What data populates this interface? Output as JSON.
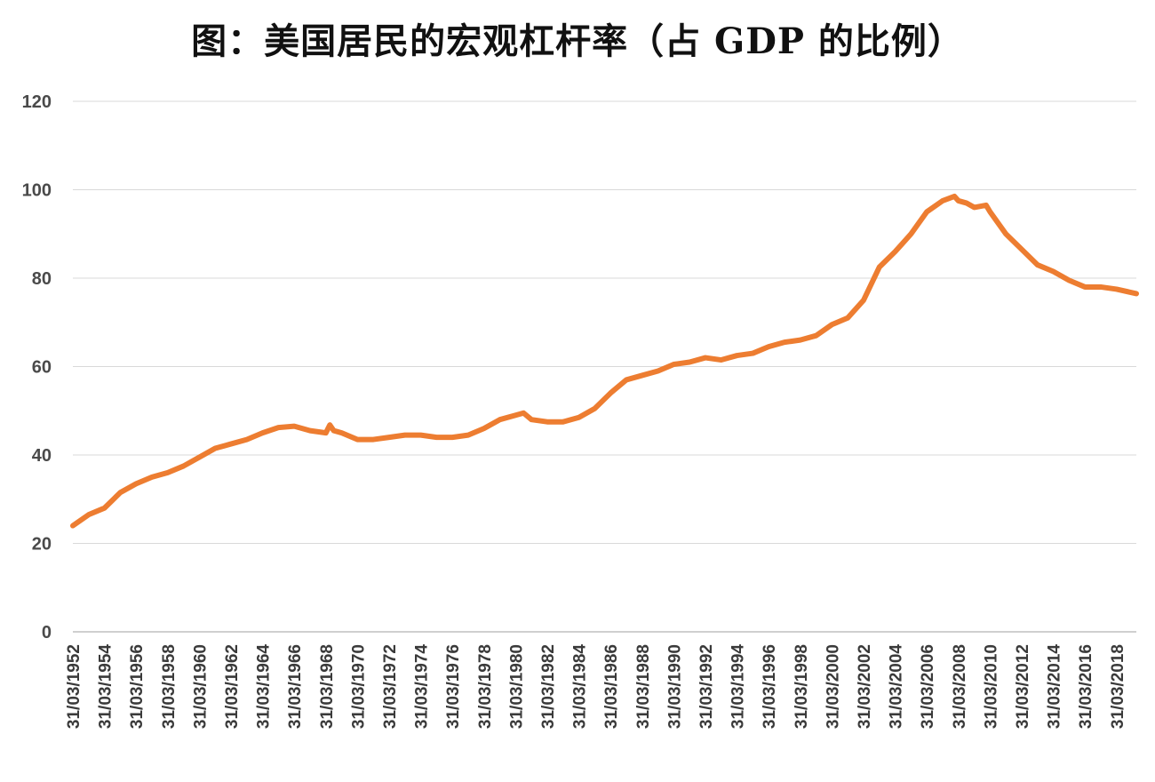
{
  "chart_data": {
    "type": "line",
    "title": "图：美国居民的宏观杠杆率（占 GDP 的比例）",
    "xlabel": "",
    "ylabel": "",
    "ylim": [
      0,
      120
    ],
    "yticks": [
      "0",
      "20",
      "40",
      "60",
      "80",
      "100",
      "120"
    ],
    "xlim": [
      1952,
      2019.25
    ],
    "xticks": [
      "31/03/1952",
      "31/03/1954",
      "31/03/1956",
      "31/03/1958",
      "31/03/1960",
      "31/03/1962",
      "31/03/1964",
      "31/03/1966",
      "31/03/1968",
      "31/03/1970",
      "31/03/1972",
      "31/03/1974",
      "31/03/1976",
      "31/03/1978",
      "31/03/1980",
      "31/03/1982",
      "31/03/1984",
      "31/03/1986",
      "31/03/1988",
      "31/03/1990",
      "31/03/1992",
      "31/03/1994",
      "31/03/1996",
      "31/03/1998",
      "31/03/2000",
      "31/03/2002",
      "31/03/2004",
      "31/03/2006",
      "31/03/2008",
      "31/03/2010",
      "31/03/2012",
      "31/03/2014",
      "31/03/2016",
      "31/03/2018"
    ],
    "grid": true,
    "legend": "none",
    "line_color": "#ED7D31",
    "grid_color": "#d9d9d9",
    "series": [
      {
        "x": [
          1952,
          1953,
          1954,
          1955,
          1956,
          1957,
          1958,
          1959,
          1960,
          1961,
          1962,
          1963,
          1964,
          1965,
          1966,
          1967,
          1968,
          1968.25,
          1968.5,
          1969,
          1970,
          1971,
          1972,
          1973,
          1974,
          1975,
          1976,
          1977,
          1978,
          1979,
          1980,
          1980.5,
          1981,
          1982,
          1983,
          1984,
          1985,
          1986,
          1987,
          1988,
          1989,
          1990,
          1991,
          1992,
          1993,
          1994,
          1995,
          1996,
          1997,
          1998,
          1999,
          2000,
          2001,
          2002,
          2003,
          2004,
          2005,
          2006,
          2007,
          2007.75,
          2008,
          2008.5,
          2009,
          2009.75,
          2010,
          2011,
          2012,
          2013,
          2014,
          2015,
          2016,
          2017,
          2018,
          2019.25
        ],
        "y": [
          24,
          26.5,
          28,
          31.5,
          33.5,
          35,
          36,
          37.5,
          39.5,
          41.5,
          42.5,
          43.5,
          45,
          46.2,
          46.5,
          45.5,
          45,
          46.8,
          45.5,
          45,
          43.5,
          43.5,
          44,
          44.5,
          44.5,
          44,
          44,
          44.5,
          46,
          48,
          49,
          49.5,
          48,
          47.5,
          47.5,
          48.5,
          50.5,
          54,
          57,
          58,
          59,
          60.5,
          61,
          62,
          61.5,
          62.5,
          63,
          64.5,
          65.5,
          66,
          67,
          69.5,
          71,
          75,
          82.5,
          86,
          90,
          95,
          97.5,
          98.5,
          97.5,
          97,
          96,
          96.5,
          95,
          90,
          86.5,
          83,
          81.5,
          79.5,
          78,
          78,
          77.5,
          76.5
        ]
      }
    ]
  }
}
